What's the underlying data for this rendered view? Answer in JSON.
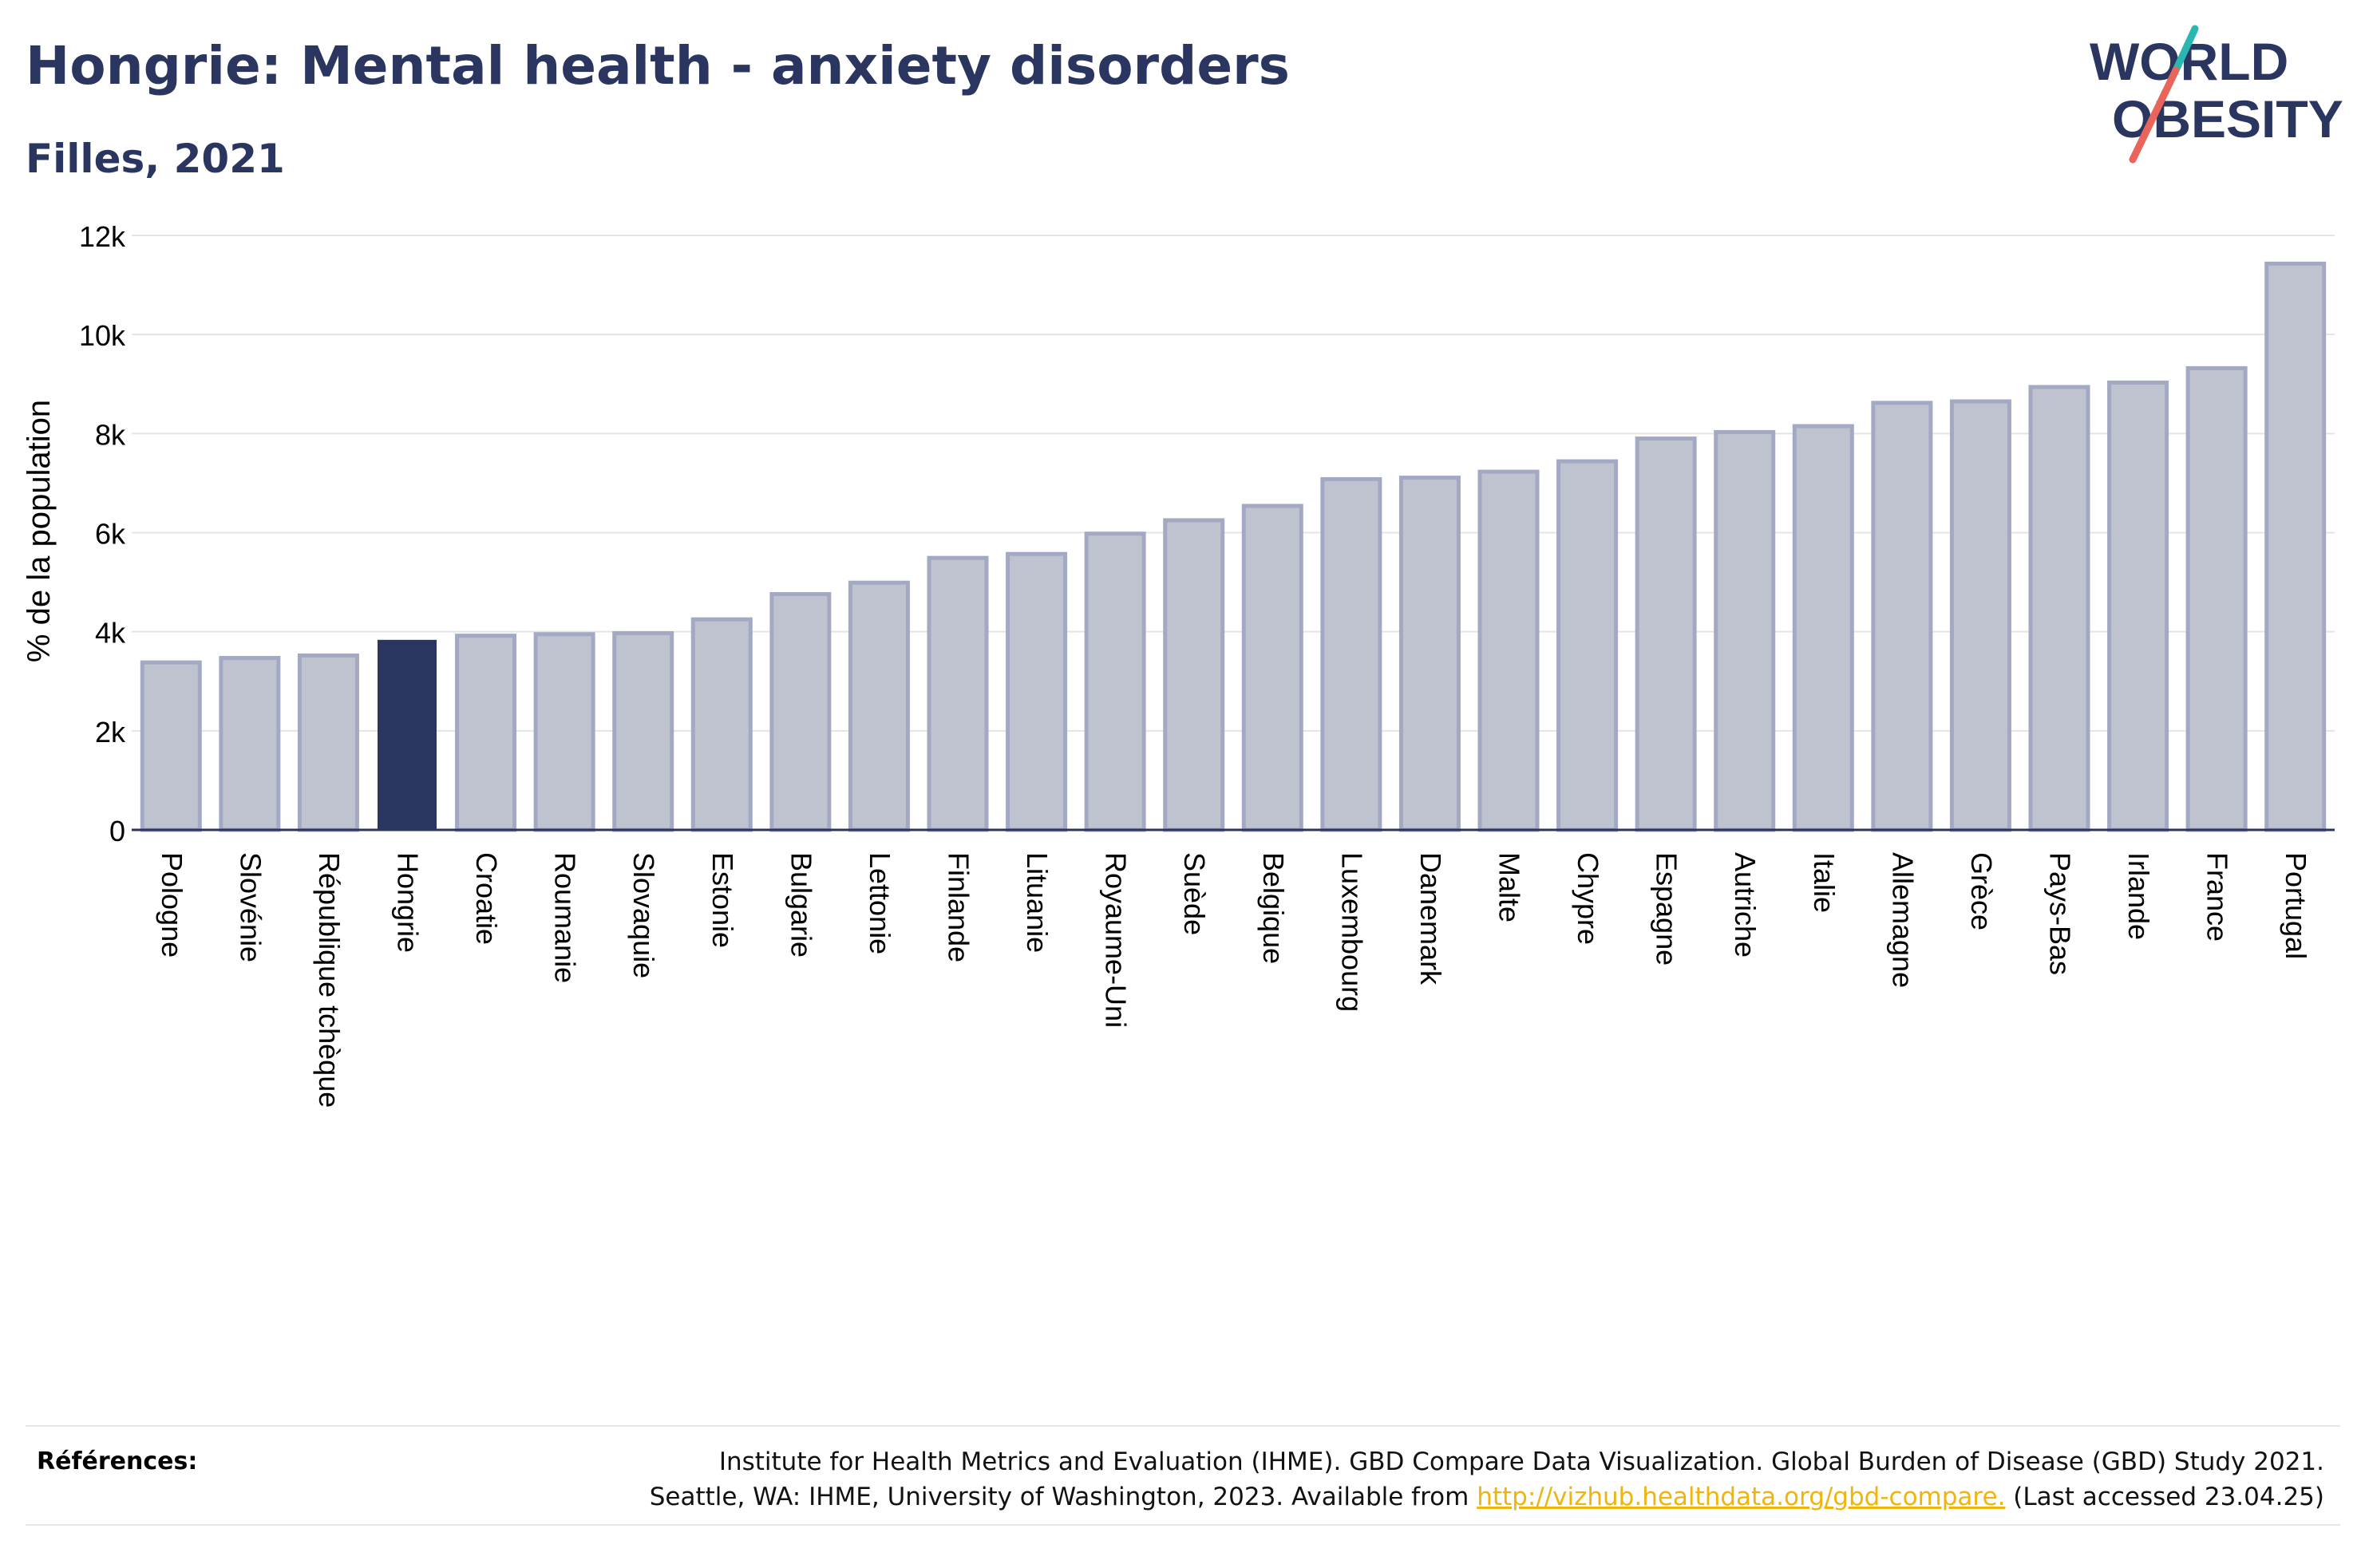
{
  "header": {
    "title": "Hongrie: Mental health - anxiety disorders",
    "subtitle": "Filles, 2021"
  },
  "logo": {
    "line1": "WORLD",
    "line2": "OBESITY"
  },
  "chart_data": {
    "type": "bar",
    "title": "Hongrie: Mental health - anxiety disorders",
    "subtitle": "Filles, 2021",
    "ylabel": "% de la population",
    "xlabel": "",
    "ylim": [
      0,
      12000
    ],
    "yticks": [
      0,
      2000,
      4000,
      6000,
      8000,
      10000,
      12000
    ],
    "ytick_labels": [
      "0",
      "2k",
      "4k",
      "6k",
      "8k",
      "10k",
      "12k"
    ],
    "grid": "horizontal",
    "highlight": "Hongrie",
    "categories": [
      "Pologne",
      "Slovénie",
      "République tchèque",
      "Hongrie",
      "Croatie",
      "Roumanie",
      "Slovaquie",
      "Estonie",
      "Bulgarie",
      "Lettonie",
      "Finlande",
      "Lituanie",
      "Royaume-Uni",
      "Suède",
      "Belgique",
      "Luxembourg",
      "Danemark",
      "Malte",
      "Chypre",
      "Espagne",
      "Autriche",
      "Italie",
      "Allemagne",
      "Grèce",
      "Pays-Bas",
      "Irlande",
      "France",
      "Portugal"
    ],
    "values": [
      3380,
      3470,
      3520,
      3820,
      3920,
      3950,
      3970,
      4250,
      4760,
      4990,
      5490,
      5570,
      5980,
      6250,
      6540,
      7080,
      7110,
      7230,
      7440,
      7900,
      8030,
      8150,
      8620,
      8650,
      8940,
      9030,
      9320,
      11430
    ],
    "colors": {
      "bar": "#bfc2cf",
      "bar_border": "#a3a9c2",
      "highlight": "#2a3560",
      "axis": "#2a3560",
      "grid": "#e4e4e4"
    }
  },
  "references": {
    "label": "Références:",
    "line1": "Institute for Health Metrics and Evaluation (IHME). GBD Compare Data Visualization. Global Burden of Disease (GBD) Study 2021.",
    "line2_prefix": "Seattle, WA: IHME, University of Washington, 2023. Available from",
    "link": "http://vizhub.healthdata.org/gbd-compare.",
    "line2_suffix": "(Last accessed 23.04.25)"
  }
}
